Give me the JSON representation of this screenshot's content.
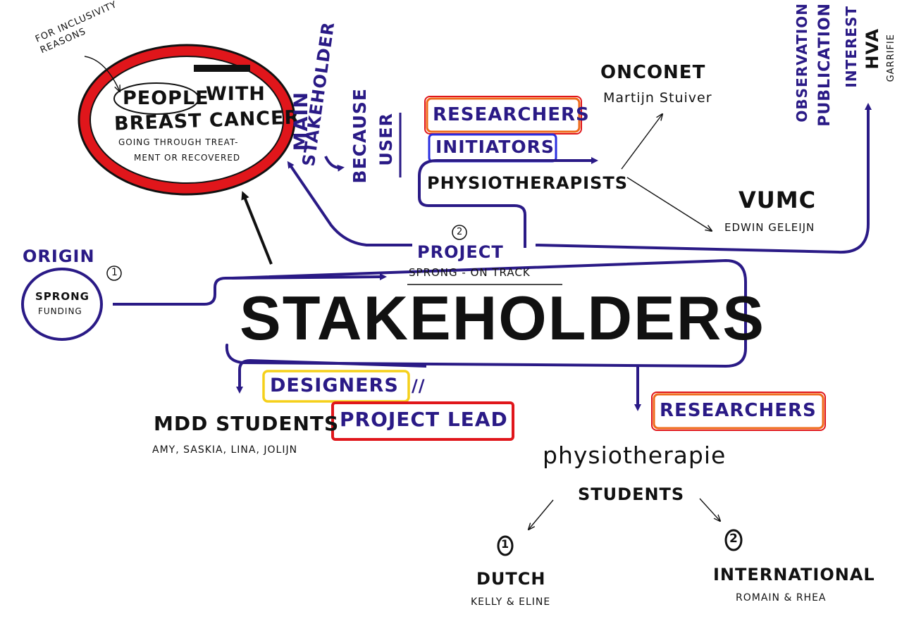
{
  "colors": {
    "ink": "#111111",
    "purple": "#2a1a86",
    "red": "#e0161b",
    "orange": "#ef6a1a",
    "blue": "#2a2ee0",
    "yellow": "#f5d01a"
  },
  "center": {
    "title": "STAKEHOLDERS"
  },
  "top_left": {
    "note": "FOR INCLUSIVITY REASONS",
    "people": "PEOPLE",
    "with": "WITH",
    "breast_cancer": "BREAST CANCER",
    "going_through": "GOING THROUGH TREAT-",
    "ment_or": "MENT OR RECOVERED"
  },
  "main_stakeholder": {
    "main": "MAIN",
    "stakeholder": "STAKEHOLDER",
    "because": "BECAUSE",
    "user": "USER"
  },
  "origin": {
    "label": "ORIGIN",
    "number": "1",
    "sprong": "SPRONG",
    "funding": "FUNDING"
  },
  "project": {
    "number": "2",
    "label": "PROJECT",
    "name": "SPRONG - ON TRACK"
  },
  "physio_group": {
    "researchers": "RESEARCHERS",
    "initiators": "INITIATORS",
    "physiotherapists": "PHYSIOTHERAPISTS",
    "onconet": "ONCONET",
    "onconet_person": "Martijn Stuiver",
    "vumc": "VUMC",
    "vumc_person": "EDWIN GELEIJN"
  },
  "hva": {
    "observation": "OBSERVATION",
    "publication": "PUBLICATION",
    "interest": "INTEREST",
    "hva": "HVA",
    "person": "GARRIFIE"
  },
  "students": {
    "designers": "DESIGNERS",
    "slashes": "//",
    "project_lead": "PROJECT LEAD",
    "mdd": "MDD STUDENTS",
    "names": "AMY, SASKIA, LINA, JOLIJN"
  },
  "physio_students": {
    "researchers": "RESEARCHERS",
    "physiotherapie": "physiotherapie",
    "students": "STUDENTS",
    "dutch_num": "1",
    "dutch": "DUTCH",
    "dutch_names": "KELLY & ELINE",
    "intl_num": "2",
    "international": "INTERNATIONAL",
    "intl_names": "ROMAIN & RHEA"
  }
}
